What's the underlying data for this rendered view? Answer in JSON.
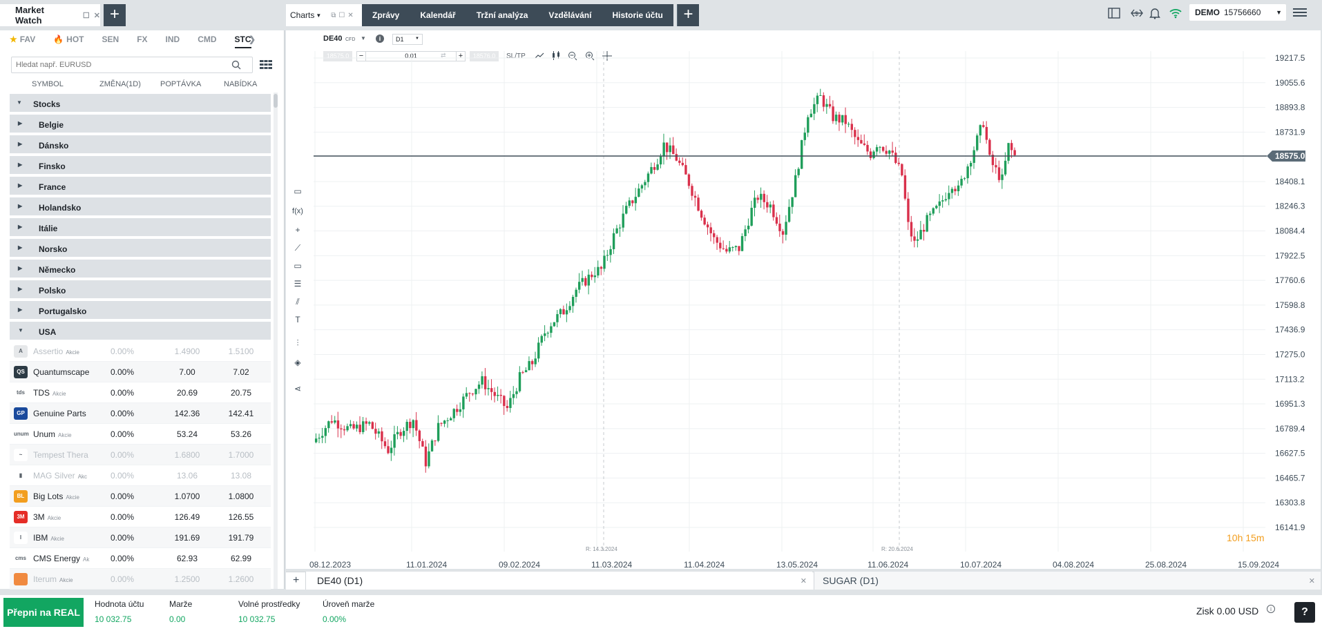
{
  "market_watch": {
    "title": "Market Watch",
    "categories": [
      {
        "label": "FAV",
        "icon": "star-icon"
      },
      {
        "label": "HOT",
        "icon": "flame-icon"
      },
      {
        "label": "SEN"
      },
      {
        "label": "FX"
      },
      {
        "label": "IND"
      },
      {
        "label": "CMD"
      },
      {
        "label": "STC",
        "active": true
      }
    ],
    "search_placeholder": "Hledat např. EURUSD",
    "columns": [
      "SYMBOL",
      "ZMĚNA(1D)",
      "POPTÁVKA",
      "NABÍDKA"
    ],
    "groups": [
      "Stocks",
      "Belgie",
      "Dánsko",
      "Finsko",
      "France",
      "Holandsko",
      "Itálie",
      "Norsko",
      "Německo",
      "Polsko",
      "Portugalsko",
      "USA"
    ],
    "rows": [
      {
        "name": "Assertio",
        "type": "Akcie",
        "change": "0.00%",
        "bid": "1.4900",
        "ask": "1.5100",
        "dim": true,
        "logo": "A",
        "color": "#e6e8ea"
      },
      {
        "name": "Quantumscape",
        "type": "",
        "change": "0.00%",
        "bid": "7.00",
        "ask": "7.02",
        "logo": "QS",
        "color": "#2d3b45"
      },
      {
        "name": "TDS",
        "type": "Akcie",
        "change": "0.00%",
        "bid": "20.69",
        "ask": "20.75",
        "logo": "tds",
        "color": "#ffffff"
      },
      {
        "name": "Genuine Parts",
        "type": "",
        "change": "0.00%",
        "bid": "142.36",
        "ask": "142.41",
        "logo": "GP",
        "color": "#1a4a9c"
      },
      {
        "name": "Unum",
        "type": "Akcie",
        "change": "0.00%",
        "bid": "53.24",
        "ask": "53.26",
        "logo": "unum",
        "color": "#ffffff"
      },
      {
        "name": "Tempest Thera",
        "type": "",
        "change": "0.00%",
        "bid": "1.6800",
        "ask": "1.7000",
        "dim": true,
        "logo": "~",
        "color": "#ffffff"
      },
      {
        "name": "MAG Silver",
        "type": "Akc",
        "change": "0.00%",
        "bid": "13.06",
        "ask": "13.08",
        "dim": true,
        "logo": "▮",
        "color": "#ffffff"
      },
      {
        "name": "Big Lots",
        "type": "Akcie",
        "change": "0.00%",
        "bid": "1.0700",
        "ask": "1.0800",
        "logo": "BL",
        "color": "#f29e1f"
      },
      {
        "name": "3M",
        "type": "Akcie",
        "change": "0.00%",
        "bid": "126.49",
        "ask": "126.55",
        "logo": "3M",
        "color": "#e52d27"
      },
      {
        "name": "IBM",
        "type": "Akcie",
        "change": "0.00%",
        "bid": "191.69",
        "ask": "191.79",
        "logo": "I",
        "color": "#ffffff"
      },
      {
        "name": "CMS Energy",
        "type": "Ak",
        "change": "0.00%",
        "bid": "62.93",
        "ask": "62.99",
        "logo": "cms",
        "color": "#ffffff"
      },
      {
        "name": "Iterum",
        "type": "Akcie",
        "change": "0.00%",
        "bid": "1.2500",
        "ask": "1.2600",
        "dim": true,
        "logo": "",
        "color": "#f08a40"
      }
    ]
  },
  "top_nav": {
    "charts_label": "Charts",
    "items": [
      "Zprávy",
      "Kalendář",
      "Tržní analýza",
      "Vzdělávání",
      "Historie účtu"
    ],
    "account_type": "DEMO",
    "account_number": "15756660"
  },
  "chart": {
    "symbol": "DE40",
    "symbol_type": "CFD",
    "timeframe": "D1",
    "sell_price": "18575.0",
    "buy_price": "18576.0",
    "volume": "0.01",
    "sltp_label": "SL/TP",
    "current_price_label": "18575.0",
    "countdown": "10h 15m",
    "vline_labels": [
      "R: 14.3.2024",
      "R: 20.6.2024"
    ]
  },
  "chart_data": {
    "type": "candlestick",
    "x_ticks": [
      "08.12.2023",
      "11.01.2024",
      "09.02.2024",
      "11.03.2024",
      "11.04.2024",
      "13.05.2024",
      "11.06.2024",
      "10.07.2024",
      "04.08.2024",
      "25.08.2024",
      "15.09.2024"
    ],
    "y_ticks": [
      "19217.5",
      "19055.6",
      "18893.8",
      "18731.9",
      "18408.1",
      "18246.3",
      "18084.4",
      "17922.5",
      "17760.6",
      "17598.8",
      "17436.9",
      "17275.0",
      "17113.2",
      "16951.3",
      "16789.4",
      "16627.5",
      "16465.7",
      "16303.8",
      "16141.9"
    ],
    "ylim": [
      16141.9,
      19217.5
    ],
    "current_price": 18575.0,
    "seed_path": [
      [
        0,
        16700
      ],
      [
        6,
        16850
      ],
      [
        12,
        16780
      ],
      [
        18,
        16820
      ],
      [
        24,
        16650
      ],
      [
        28,
        16780
      ],
      [
        32,
        16850
      ],
      [
        36,
        16570
      ],
      [
        40,
        16800
      ],
      [
        46,
        16930
      ],
      [
        50,
        17030
      ],
      [
        54,
        17100
      ],
      [
        58,
        17010
      ],
      [
        62,
        16920
      ],
      [
        66,
        17120
      ],
      [
        70,
        17220
      ],
      [
        74,
        17420
      ],
      [
        76,
        17480
      ],
      [
        80,
        17560
      ],
      [
        84,
        17700
      ],
      [
        90,
        17820
      ],
      [
        92,
        17830
      ],
      [
        96,
        18050
      ],
      [
        100,
        18220
      ],
      [
        106,
        18420
      ],
      [
        110,
        18560
      ],
      [
        112,
        18650
      ],
      [
        116,
        18560
      ],
      [
        120,
        18400
      ],
      [
        124,
        18200
      ],
      [
        128,
        18030
      ],
      [
        132,
        17950
      ],
      [
        136,
        17970
      ],
      [
        140,
        18220
      ],
      [
        142,
        18310
      ],
      [
        146,
        18250
      ],
      [
        150,
        18080
      ],
      [
        154,
        18420
      ],
      [
        158,
        18860
      ],
      [
        162,
        18960
      ],
      [
        166,
        18830
      ],
      [
        170,
        18800
      ],
      [
        174,
        18660
      ],
      [
        178,
        18590
      ],
      [
        180,
        18660
      ],
      [
        184,
        18610
      ],
      [
        188,
        18450
      ],
      [
        190,
        18120
      ],
      [
        192,
        18000
      ],
      [
        196,
        18150
      ],
      [
        200,
        18250
      ],
      [
        204,
        18400
      ],
      [
        206,
        18350
      ],
      [
        208,
        18460
      ],
      [
        212,
        18680
      ],
      [
        214,
        18800
      ],
      [
        216,
        18550
      ],
      [
        218,
        18480
      ],
      [
        220,
        18420
      ],
      [
        222,
        18640
      ],
      [
        224,
        18575
      ]
    ]
  },
  "bottom_tabs": [
    "DE40 (D1)",
    "SUGAR (D1)"
  ],
  "footer": {
    "real_button": "Přepni na REAL",
    "items": [
      {
        "label": "Hodnota účtu",
        "value": "10 032.75"
      },
      {
        "label": "Marže",
        "value": "0.00"
      },
      {
        "label": "Volné prostředky",
        "value": "10 032.75"
      },
      {
        "label": "Úroveň marže",
        "value": "0.00%"
      }
    ],
    "profit": "Zisk 0.00 USD"
  }
}
